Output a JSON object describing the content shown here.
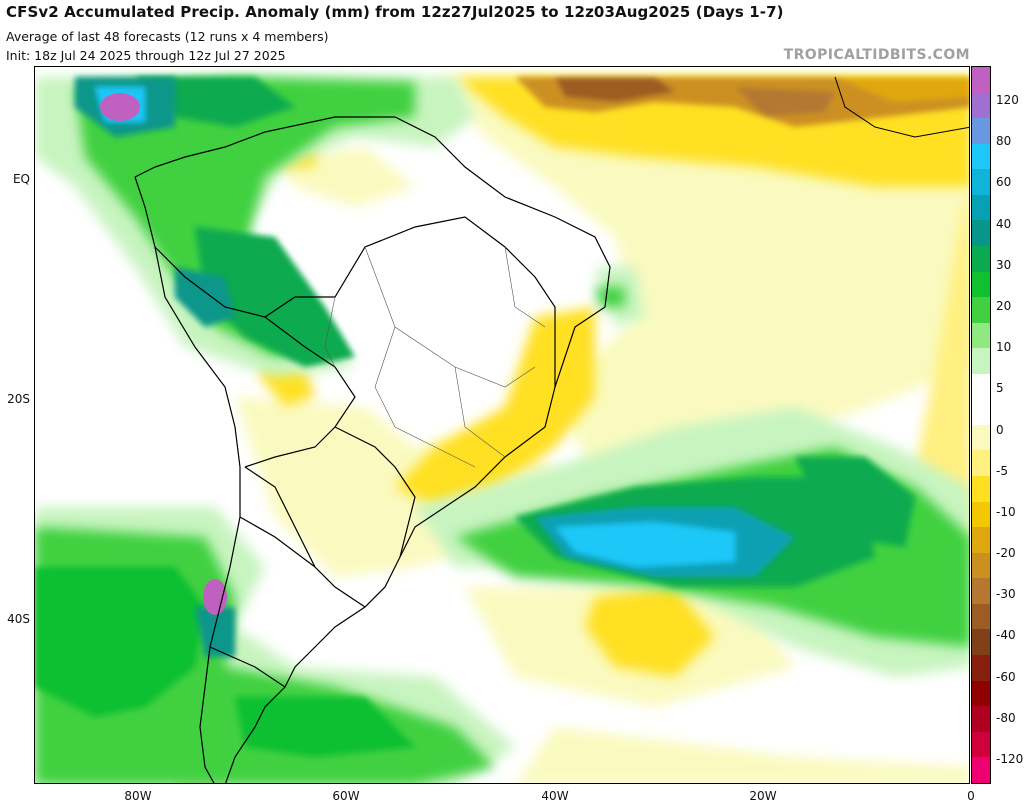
{
  "header": {
    "title": "CFSv2 Accumulated Precip. Anomaly (mm) from 12z27Jul2025 to 12z03Aug2025 (Days 1-7)",
    "subtitle": "Average of last 48 forecasts (12 runs x 4 members)",
    "init": "Init: 18z Jul 24 2025 through 12z Jul 27 2025",
    "brand": "TROPICALTIDBITS.COM"
  },
  "map": {
    "lat_labels": [
      "EQ",
      "20S",
      "40S"
    ],
    "lon_labels": [
      "80W",
      "60W",
      "40W",
      "20W",
      "0"
    ]
  },
  "colorbar": {
    "labels": [
      "120",
      "80",
      "60",
      "40",
      "30",
      "20",
      "10",
      "5",
      "0",
      "-5",
      "-10",
      "-20",
      "-30",
      "-40",
      "-60",
      "-80",
      "-120"
    ],
    "colors": [
      "#c060c0",
      "#a070d0",
      "#6a98e0",
      "#1ec8f8",
      "#10b4d8",
      "#08a0b4",
      "#08968a",
      "#0aaa50",
      "#10c030",
      "#40d040",
      "#90e880",
      "#c8f4c0",
      "#ffffff",
      "#ffffff",
      "#fafac0",
      "#fff080",
      "#ffe020",
      "#f4c800",
      "#e0a810",
      "#cc9020",
      "#b47830",
      "#9c5c24",
      "#804018",
      "#882010",
      "#900000",
      "#b00020",
      "#d0003c",
      "#ee0070"
    ]
  }
}
